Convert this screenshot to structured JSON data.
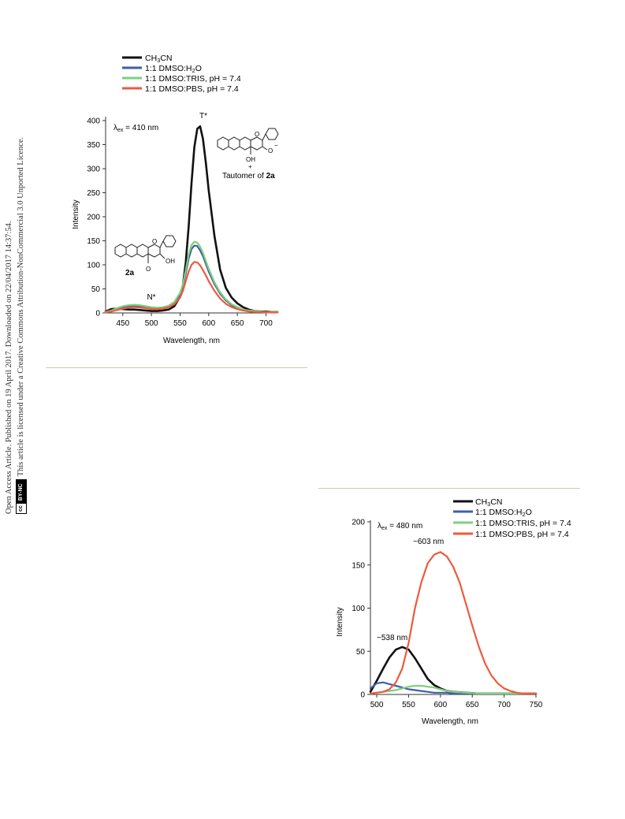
{
  "margin_note": {
    "line1": "Open Access Article. Published on 19 April 2017. Downloaded on 22/04/2017 14:37:54.",
    "line2": "This article is licensed under a Creative Commons Attribution-NonCommercial 3.0 Unported Licence.",
    "badge_cc": "cc",
    "badge_by": "BY-NC"
  },
  "colors": {
    "ch3cn": "#111111",
    "dmso_h2o": "#3f5fa8",
    "dmso_tris": "#7fcf7f",
    "dmso_pbs": "#ee5a3c"
  },
  "chart_data": [
    {
      "type": "line",
      "xlabel": "Wavelength, nm",
      "ylabel": "Intensity",
      "xlim": [
        420,
        720
      ],
      "ylim": [
        0,
        400
      ],
      "xticks": [
        450,
        500,
        550,
        600,
        650,
        700
      ],
      "yticks": [
        0,
        50,
        100,
        150,
        200,
        250,
        300,
        350,
        400
      ],
      "grid": false,
      "legend_position": "top",
      "annotations": {
        "excitation": "λex = 410 nm",
        "t_star": "T*",
        "n_star": "N*",
        "compound_label": "2a",
        "compound_oh": "OH",
        "compound_o": "O",
        "tautomer_oh": "OH",
        "tautomer_plus": "+",
        "tautomer_o": "O",
        "tautomer_charge": "−",
        "tautomer_caption_prefix": "Tautomer of ",
        "tautomer_caption_bold": "2a"
      },
      "series": [
        {
          "name": "CH3CN",
          "color_key": "ch3cn",
          "x": [
            420,
            430,
            440,
            450,
            460,
            470,
            480,
            490,
            500,
            510,
            520,
            530,
            540,
            550,
            555,
            560,
            565,
            570,
            575,
            580,
            585,
            590,
            595,
            600,
            610,
            620,
            630,
            640,
            650,
            660,
            670,
            680,
            690,
            700,
            710,
            720
          ],
          "y": [
            3,
            8,
            9,
            8,
            7,
            7,
            6,
            5,
            4,
            4,
            5,
            7,
            14,
            34,
            58,
            105,
            180,
            270,
            345,
            383,
            388,
            362,
            312,
            255,
            160,
            90,
            52,
            32,
            20,
            12,
            7,
            4,
            3,
            3,
            2,
            2
          ]
        },
        {
          "name": "1:1 DMSO:H2O",
          "color_key": "dmso_h2o",
          "x": [
            420,
            430,
            440,
            450,
            460,
            470,
            480,
            490,
            500,
            510,
            520,
            530,
            540,
            550,
            555,
            560,
            565,
            570,
            575,
            580,
            585,
            590,
            595,
            600,
            610,
            620,
            630,
            640,
            650,
            660,
            670,
            680,
            690,
            700,
            710,
            720
          ],
          "y": [
            2,
            4,
            8,
            12,
            14,
            15,
            14,
            12,
            10,
            10,
            11,
            14,
            21,
            38,
            55,
            82,
            113,
            133,
            140,
            139,
            130,
            118,
            102,
            86,
            60,
            40,
            26,
            16,
            10,
            6,
            4,
            3,
            2,
            2,
            2,
            1
          ]
        },
        {
          "name": "1:1 DMSO:TRIS, pH = 7.4",
          "color_key": "dmso_tris",
          "x": [
            420,
            430,
            440,
            450,
            460,
            470,
            480,
            490,
            500,
            510,
            520,
            530,
            540,
            550,
            555,
            560,
            565,
            570,
            575,
            580,
            585,
            590,
            595,
            600,
            610,
            620,
            630,
            640,
            650,
            660,
            670,
            680,
            690,
            700,
            710,
            720
          ],
          "y": [
            2,
            5,
            10,
            14,
            16,
            17,
            16,
            14,
            12,
            11,
            12,
            15,
            23,
            42,
            60,
            89,
            122,
            141,
            148,
            146,
            138,
            125,
            108,
            92,
            64,
            43,
            28,
            18,
            12,
            7,
            5,
            4,
            3,
            2,
            2,
            2
          ]
        },
        {
          "name": "1:1 DMSO:PBS, pH = 7.4",
          "color_key": "dmso_pbs",
          "x": [
            420,
            430,
            440,
            450,
            460,
            470,
            480,
            490,
            500,
            510,
            520,
            530,
            540,
            550,
            555,
            560,
            565,
            570,
            575,
            580,
            585,
            590,
            595,
            600,
            610,
            620,
            630,
            640,
            650,
            660,
            670,
            680,
            690,
            700,
            710,
            720
          ],
          "y": [
            1,
            3,
            6,
            9,
            11,
            12,
            11,
            10,
            8,
            8,
            9,
            12,
            18,
            32,
            46,
            66,
            86,
            100,
            106,
            105,
            99,
            89,
            78,
            66,
            46,
            30,
            19,
            12,
            8,
            5,
            3,
            2,
            2,
            1,
            1,
            1
          ]
        }
      ],
      "legend": [
        {
          "label": "CH3CN",
          "color_key": "ch3cn"
        },
        {
          "label": "1:1 DMSO:H2O",
          "color_key": "dmso_h2o"
        },
        {
          "label": "1:1 DMSO:TRIS, pH = 7.4",
          "color_key": "dmso_tris"
        },
        {
          "label": "1:1 DMSO:PBS, pH = 7.4",
          "color_key": "dmso_pbs"
        }
      ]
    },
    {
      "type": "line",
      "xlabel": "Wavelength, nm",
      "ylabel": "Intensity",
      "xlim": [
        490,
        750
      ],
      "ylim": [
        0,
        200
      ],
      "xticks": [
        500,
        550,
        600,
        650,
        700,
        750
      ],
      "yticks": [
        0,
        50,
        100,
        150,
        200
      ],
      "grid": false,
      "legend_position": "top-right",
      "annotations": {
        "excitation": "λex = 480 nm",
        "peak_538": "~538 nm",
        "peak_603": "~603 nm"
      },
      "series": [
        {
          "name": "CH3CN",
          "color_key": "ch3cn",
          "x": [
            490,
            500,
            510,
            520,
            530,
            540,
            550,
            560,
            570,
            580,
            590,
            600,
            610,
            620,
            640,
            660,
            680,
            700,
            720,
            750
          ],
          "y": [
            3,
            16,
            30,
            43,
            52,
            55,
            52,
            42,
            30,
            18,
            11,
            7,
            4,
            3,
            2,
            1,
            1,
            1,
            1,
            1
          ]
        },
        {
          "name": "1:1 DMSO:H2O",
          "color_key": "dmso_h2o",
          "x": [
            490,
            500,
            510,
            520,
            530,
            540,
            550,
            560,
            570,
            580,
            590,
            600,
            610,
            620,
            640,
            660,
            680,
            700,
            720,
            750
          ],
          "y": [
            7,
            13,
            14,
            12,
            10,
            8,
            6,
            5,
            4,
            3,
            2,
            2,
            2,
            1,
            1,
            1,
            1,
            1,
            1,
            1
          ]
        },
        {
          "name": "1:1 DMSO:TRIS, pH = 7.4",
          "color_key": "dmso_tris",
          "x": [
            490,
            500,
            510,
            520,
            530,
            540,
            550,
            560,
            570,
            580,
            590,
            600,
            610,
            620,
            640,
            660,
            680,
            700,
            720,
            750
          ],
          "y": [
            1,
            2,
            3,
            4,
            5,
            7,
            9,
            10,
            10,
            9,
            8,
            6,
            4,
            3,
            2,
            1,
            1,
            1,
            1,
            1
          ]
        },
        {
          "name": "1:1 DMSO:PBS, pH = 7.4",
          "color_key": "dmso_pbs",
          "x": [
            490,
            500,
            510,
            520,
            530,
            540,
            550,
            560,
            570,
            580,
            590,
            600,
            610,
            620,
            630,
            640,
            650,
            660,
            670,
            680,
            690,
            700,
            710,
            720,
            730,
            740,
            750
          ],
          "y": [
            1,
            2,
            3,
            6,
            14,
            30,
            60,
            100,
            130,
            152,
            162,
            165,
            160,
            148,
            130,
            105,
            80,
            56,
            36,
            22,
            13,
            7,
            4,
            2,
            1,
            1,
            1
          ]
        }
      ],
      "legend": [
        {
          "label": "CH3CN",
          "color_key": "ch3cn"
        },
        {
          "label": "1:1 DMSO:H2O",
          "color_key": "dmso_h2o"
        },
        {
          "label": "1:1 DMSO:TRIS, pH = 7.4",
          "color_key": "dmso_tris"
        },
        {
          "label": "1:1 DMSO:PBS, pH = 7.4",
          "color_key": "dmso_pbs"
        }
      ]
    }
  ]
}
